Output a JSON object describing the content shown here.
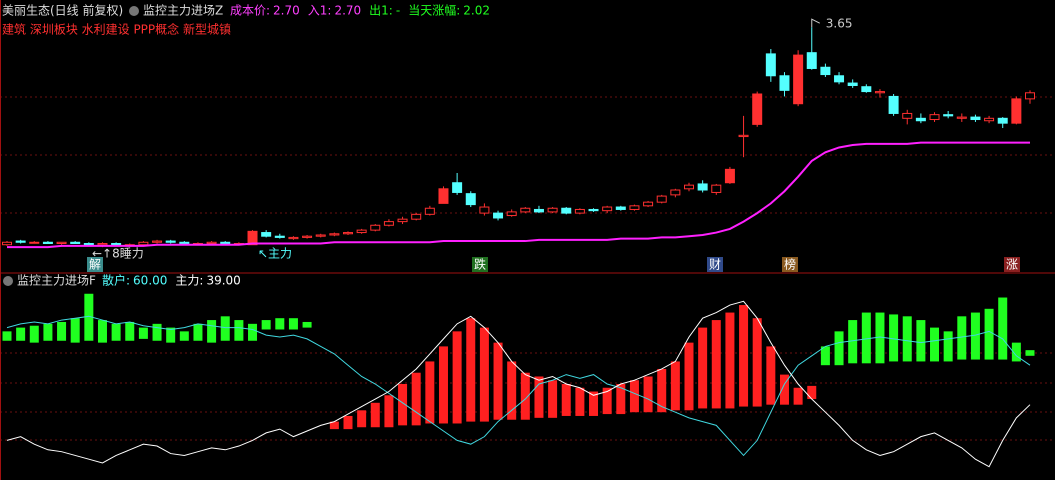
{
  "chart_data": [
    {
      "type": "candlestick",
      "stock": "美丽生态(日线 前复权)",
      "title": "监控主力进场Z",
      "stats": [
        {
          "label": "成本价:",
          "value": "2.70",
          "color": "#ff40ff"
        },
        {
          "label": "入1:",
          "value": "2.70",
          "color": "#ff40ff"
        },
        {
          "label": "出1:",
          "value": "-",
          "color": "#20ff20"
        },
        {
          "label": "当天涨幅:",
          "value": "2.02",
          "color": "#20ff20"
        }
      ],
      "tags": "建筑 深圳板块 水利建设 PPP概念 新型城镇",
      "ylim": [
        1.8,
        3.75
      ],
      "up_color": "#ff3030",
      "down_color": "#54ffff",
      "ohlc": [
        [
          1.86,
          1.89,
          1.85,
          1.88
        ],
        [
          1.89,
          1.9,
          1.87,
          1.88
        ],
        [
          1.88,
          1.89,
          1.87,
          1.88
        ],
        [
          1.88,
          1.89,
          1.87,
          1.87
        ],
        [
          1.87,
          1.88,
          1.86,
          1.88
        ],
        [
          1.88,
          1.89,
          1.87,
          1.87
        ],
        [
          1.87,
          1.88,
          1.86,
          1.86
        ],
        [
          1.86,
          1.88,
          1.84,
          1.87
        ],
        [
          1.87,
          1.88,
          1.85,
          1.86
        ],
        [
          1.86,
          1.87,
          1.85,
          1.86
        ],
        [
          1.86,
          1.89,
          1.85,
          1.88
        ],
        [
          1.88,
          1.9,
          1.87,
          1.89
        ],
        [
          1.89,
          1.9,
          1.87,
          1.88
        ],
        [
          1.88,
          1.89,
          1.86,
          1.87
        ],
        [
          1.87,
          1.88,
          1.86,
          1.87
        ],
        [
          1.87,
          1.89,
          1.86,
          1.88
        ],
        [
          1.88,
          1.89,
          1.87,
          1.87
        ],
        [
          1.87,
          1.88,
          1.86,
          1.87
        ],
        [
          1.86,
          1.98,
          1.86,
          1.97
        ],
        [
          1.96,
          1.98,
          1.92,
          1.93
        ],
        [
          1.93,
          1.95,
          1.91,
          1.92
        ],
        [
          1.91,
          1.93,
          1.9,
          1.92
        ],
        [
          1.92,
          1.94,
          1.91,
          1.93
        ],
        [
          1.93,
          1.95,
          1.92,
          1.94
        ],
        [
          1.94,
          1.96,
          1.93,
          1.95
        ],
        [
          1.95,
          1.97,
          1.94,
          1.96
        ],
        [
          1.96,
          1.99,
          1.95,
          1.98
        ],
        [
          1.98,
          2.03,
          1.97,
          2.02
        ],
        [
          2.02,
          2.07,
          2.01,
          2.05
        ],
        [
          2.05,
          2.09,
          2.03,
          2.07
        ],
        [
          2.07,
          2.12,
          2.06,
          2.11
        ],
        [
          2.11,
          2.18,
          2.1,
          2.16
        ],
        [
          2.2,
          2.34,
          2.2,
          2.32
        ],
        [
          2.37,
          2.45,
          2.27,
          2.29
        ],
        [
          2.28,
          2.3,
          2.17,
          2.19
        ],
        [
          2.12,
          2.2,
          2.1,
          2.17
        ],
        [
          2.12,
          2.14,
          2.06,
          2.08
        ],
        [
          2.1,
          2.15,
          2.09,
          2.13
        ],
        [
          2.13,
          2.17,
          2.12,
          2.16
        ],
        [
          2.15,
          2.18,
          2.12,
          2.13
        ],
        [
          2.13,
          2.17,
          2.12,
          2.16
        ],
        [
          2.16,
          2.17,
          2.11,
          2.12
        ],
        [
          2.12,
          2.16,
          2.11,
          2.15
        ],
        [
          2.15,
          2.16,
          2.13,
          2.14
        ],
        [
          2.14,
          2.18,
          2.12,
          2.17
        ],
        [
          2.17,
          2.18,
          2.14,
          2.15
        ],
        [
          2.15,
          2.19,
          2.14,
          2.18
        ],
        [
          2.18,
          2.22,
          2.17,
          2.21
        ],
        [
          2.21,
          2.27,
          2.2,
          2.26
        ],
        [
          2.27,
          2.32,
          2.25,
          2.31
        ],
        [
          2.32,
          2.37,
          2.3,
          2.35
        ],
        [
          2.36,
          2.39,
          2.29,
          2.31
        ],
        [
          2.29,
          2.36,
          2.27,
          2.35
        ],
        [
          2.37,
          2.5,
          2.36,
          2.48
        ],
        [
          2.75,
          2.92,
          2.58,
          2.76
        ],
        [
          2.85,
          3.12,
          2.83,
          3.1
        ],
        [
          3.43,
          3.47,
          3.2,
          3.25
        ],
        [
          3.25,
          3.28,
          3.08,
          3.13
        ],
        [
          3.02,
          3.46,
          3.0,
          3.42
        ],
        [
          3.44,
          3.65,
          3.3,
          3.31
        ],
        [
          3.32,
          3.35,
          3.24,
          3.26
        ],
        [
          3.25,
          3.28,
          3.18,
          3.2
        ],
        [
          3.19,
          3.22,
          3.15,
          3.17
        ],
        [
          3.16,
          3.18,
          3.11,
          3.12
        ],
        [
          3.11,
          3.14,
          3.07,
          3.12
        ],
        [
          3.08,
          3.1,
          2.92,
          2.94
        ],
        [
          2.9,
          2.97,
          2.85,
          2.94
        ],
        [
          2.9,
          2.94,
          2.86,
          2.88
        ],
        [
          2.89,
          2.95,
          2.87,
          2.93
        ],
        [
          2.93,
          2.96,
          2.9,
          2.92
        ],
        [
          2.9,
          2.94,
          2.87,
          2.91
        ],
        [
          2.91,
          2.93,
          2.87,
          2.89
        ],
        [
          2.88,
          2.92,
          2.86,
          2.9
        ],
        [
          2.9,
          2.91,
          2.82,
          2.86
        ],
        [
          2.86,
          3.08,
          2.85,
          3.06
        ],
        [
          3.06,
          3.13,
          3.02,
          3.11
        ]
      ],
      "cost_line": {
        "color": "#ff20ff",
        "values": [
          1.84,
          1.84,
          1.84,
          1.84,
          1.85,
          1.85,
          1.85,
          1.85,
          1.85,
          1.85,
          1.85,
          1.86,
          1.86,
          1.86,
          1.86,
          1.86,
          1.86,
          1.86,
          1.87,
          1.87,
          1.87,
          1.87,
          1.87,
          1.87,
          1.88,
          1.88,
          1.88,
          1.88,
          1.88,
          1.88,
          1.88,
          1.88,
          1.89,
          1.89,
          1.89,
          1.89,
          1.89,
          1.89,
          1.89,
          1.9,
          1.9,
          1.9,
          1.9,
          1.9,
          1.9,
          1.91,
          1.91,
          1.91,
          1.92,
          1.92,
          1.93,
          1.94,
          1.96,
          1.99,
          2.05,
          2.12,
          2.2,
          2.3,
          2.42,
          2.55,
          2.62,
          2.66,
          2.68,
          2.69,
          2.69,
          2.69,
          2.69,
          2.7,
          2.7,
          2.7,
          2.7,
          2.7,
          2.7,
          2.7,
          2.7,
          2.7
        ]
      },
      "markers": [
        "解",
        "跌",
        "财",
        "榜",
        "涨"
      ],
      "notes": [
        "←↑8睡力",
        "↖主力"
      ]
    },
    {
      "type": "floating-bar",
      "title": "监控主力进场F",
      "stats": [
        {
          "label": "散户:",
          "value": "60.00",
          "color": "#54ffff"
        },
        {
          "label": "主力:",
          "value": "39.00",
          "color": "#ffffff"
        }
      ],
      "ylim": [
        0,
        100
      ],
      "up_color": "#20ff20",
      "down_color": "#ff2020",
      "bar_bottom": [
        73,
        73,
        72,
        73,
        73,
        72,
        73,
        72,
        73,
        73,
        74,
        73,
        72,
        73,
        73,
        72,
        73,
        73,
        73,
        79,
        79,
        79,
        80,
        null,
        26,
        26,
        27,
        27,
        27,
        28,
        28,
        29,
        29,
        29,
        30,
        30,
        31,
        31,
        31,
        32,
        32,
        33,
        33,
        33,
        34,
        34,
        35,
        35,
        35,
        36,
        36,
        37,
        37,
        37,
        38,
        38,
        39,
        39,
        39,
        42,
        60,
        60,
        61,
        61,
        61,
        62,
        62,
        62,
        62,
        62,
        63,
        63,
        63,
        63,
        62,
        65
      ],
      "bar_top": [
        78,
        80,
        81,
        82,
        83,
        85,
        98,
        84,
        82,
        83,
        80,
        82,
        80,
        78,
        82,
        84,
        86,
        84,
        82,
        84,
        85,
        85,
        83,
        null,
        30,
        33,
        36,
        40,
        44,
        50,
        56,
        62,
        70,
        78,
        85,
        80,
        72,
        62,
        56,
        54,
        52,
        50,
        48,
        46,
        48,
        50,
        52,
        54,
        58,
        62,
        72,
        80,
        84,
        88,
        92,
        85,
        70,
        55,
        48,
        49,
        70,
        78,
        84,
        88,
        88,
        87,
        86,
        84,
        80,
        78,
        86,
        88,
        90,
        96,
        72,
        68
      ],
      "series": [
        {
          "color": "#40d8e0",
          "values": [
            80,
            82,
            83,
            82,
            84,
            85,
            86,
            84,
            82,
            83,
            81,
            80,
            79,
            80,
            82,
            81,
            80,
            80,
            79,
            76,
            75,
            76,
            74,
            70,
            66,
            60,
            54,
            50,
            45,
            40,
            35,
            30,
            25,
            20,
            18,
            22,
            30,
            36,
            42,
            50,
            52,
            55,
            53,
            55,
            50,
            48,
            45,
            42,
            38,
            35,
            32,
            30,
            28,
            20,
            12,
            20,
            35,
            50,
            60,
            65,
            70,
            72,
            73,
            74,
            75,
            74,
            73,
            72,
            73,
            74,
            75,
            76,
            78,
            74,
            65,
            60
          ]
        },
        {
          "color": "#ffffff",
          "values": [
            20,
            22,
            18,
            15,
            14,
            12,
            10,
            8,
            12,
            15,
            18,
            17,
            13,
            12,
            14,
            16,
            15,
            17,
            20,
            24,
            26,
            22,
            25,
            28,
            30,
            34,
            38,
            42,
            46,
            52,
            58,
            66,
            74,
            82,
            86,
            80,
            72,
            62,
            55,
            52,
            54,
            50,
            48,
            44,
            46,
            50,
            52,
            55,
            58,
            62,
            75,
            85,
            88,
            92,
            94,
            85,
            72,
            60,
            50,
            42,
            35,
            28,
            20,
            15,
            12,
            14,
            18,
            22,
            24,
            20,
            16,
            10,
            6,
            20,
            32,
            39
          ]
        }
      ]
    }
  ]
}
